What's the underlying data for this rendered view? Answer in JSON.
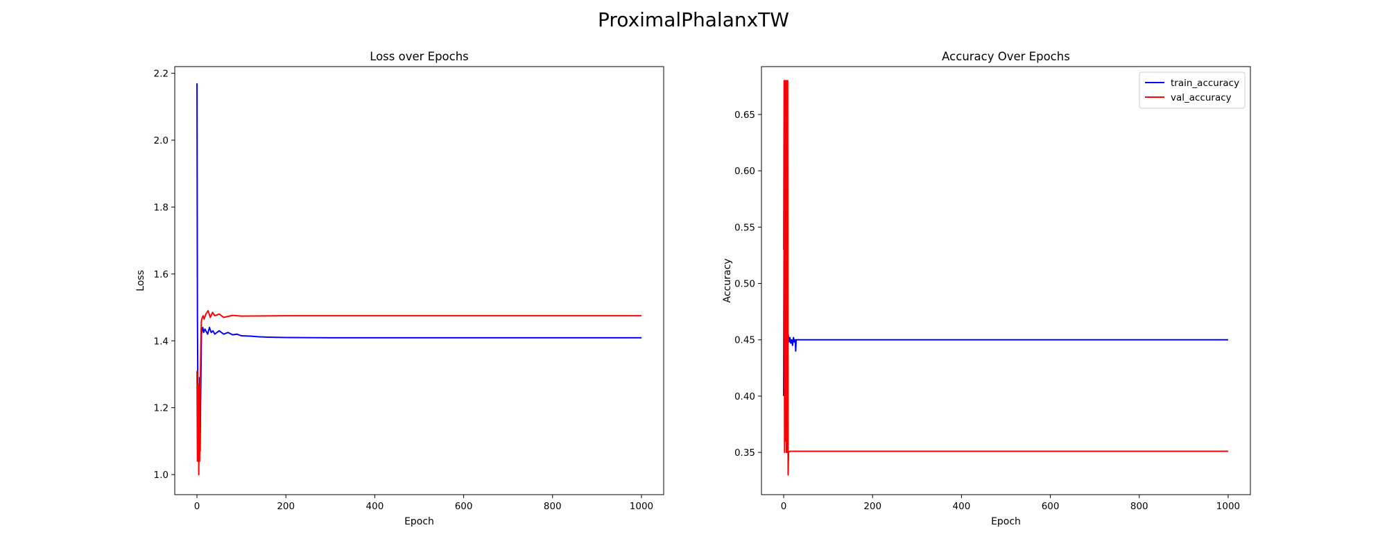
{
  "figure": {
    "title": "ProximalPhalanxTW"
  },
  "chart_data": [
    {
      "type": "line",
      "title": "Loss over Epochs",
      "xlabel": "Epoch",
      "ylabel": "Loss",
      "xlim": [
        -50,
        1050
      ],
      "ylim": [
        0.94,
        2.22
      ],
      "xticks": [
        0,
        200,
        400,
        600,
        800,
        1000
      ],
      "yticks": [
        1.0,
        1.2,
        1.4,
        1.6,
        1.8,
        2.0,
        2.2
      ],
      "ytick_decimals": 1,
      "grid": false,
      "legend": "none",
      "series": [
        {
          "color": "#0000ff",
          "points": [
            [
              0,
              2.17
            ],
            [
              1,
              1.48
            ],
            [
              2,
              1.25
            ],
            [
              3,
              1.1
            ],
            [
              4,
              1.22
            ],
            [
              5,
              1.05
            ],
            [
              6,
              1.29
            ],
            [
              7,
              1.07
            ],
            [
              8,
              1.2
            ],
            [
              9,
              1.3
            ],
            [
              10,
              1.42
            ],
            [
              11,
              1.43
            ],
            [
              13,
              1.44
            ],
            [
              15,
              1.425
            ],
            [
              18,
              1.435
            ],
            [
              20,
              1.43
            ],
            [
              24,
              1.42
            ],
            [
              28,
              1.44
            ],
            [
              32,
              1.425
            ],
            [
              36,
              1.43
            ],
            [
              40,
              1.42
            ],
            [
              50,
              1.43
            ],
            [
              60,
              1.42
            ],
            [
              70,
              1.425
            ],
            [
              80,
              1.418
            ],
            [
              90,
              1.42
            ],
            [
              100,
              1.415
            ],
            [
              120,
              1.414
            ],
            [
              140,
              1.412
            ],
            [
              160,
              1.411
            ],
            [
              200,
              1.41
            ],
            [
              300,
              1.409
            ],
            [
              400,
              1.409
            ],
            [
              600,
              1.409
            ],
            [
              800,
              1.409
            ],
            [
              1000,
              1.409
            ]
          ]
        },
        {
          "color": "#ff0000",
          "points": [
            [
              0,
              1.31
            ],
            [
              1,
              1.04
            ],
            [
              2,
              1.18
            ],
            [
              3,
              1.27
            ],
            [
              4,
              1.0
            ],
            [
              5,
              1.19
            ],
            [
              6,
              1.04
            ],
            [
              7,
              1.22
            ],
            [
              8,
              1.33
            ],
            [
              9,
              1.42
            ],
            [
              10,
              1.46
            ],
            [
              12,
              1.47
            ],
            [
              14,
              1.475
            ],
            [
              16,
              1.465
            ],
            [
              20,
              1.48
            ],
            [
              25,
              1.49
            ],
            [
              30,
              1.47
            ],
            [
              35,
              1.485
            ],
            [
              40,
              1.475
            ],
            [
              50,
              1.48
            ],
            [
              60,
              1.47
            ],
            [
              80,
              1.476
            ],
            [
              100,
              1.474
            ],
            [
              200,
              1.475
            ],
            [
              400,
              1.475
            ],
            [
              600,
              1.475
            ],
            [
              800,
              1.475
            ],
            [
              1000,
              1.475
            ]
          ]
        }
      ]
    },
    {
      "type": "line",
      "title": "Accuracy Over Epochs",
      "xlabel": "Epoch",
      "ylabel": "Accuracy",
      "xlim": [
        -50,
        1050
      ],
      "ylim": [
        0.3125,
        0.6925
      ],
      "xticks": [
        0,
        200,
        400,
        600,
        800,
        1000
      ],
      "yticks": [
        0.35,
        0.4,
        0.45,
        0.5,
        0.55,
        0.6,
        0.65
      ],
      "ytick_decimals": 2,
      "grid": false,
      "legend": "top-right",
      "series": [
        {
          "name": "train_accuracy",
          "color": "#0000ff",
          "points": [
            [
              0,
              0.4
            ],
            [
              1,
              0.55
            ],
            [
              2,
              0.62
            ],
            [
              3,
              0.58
            ],
            [
              4,
              0.6
            ],
            [
              5,
              0.52
            ],
            [
              6,
              0.55
            ],
            [
              7,
              0.5
            ],
            [
              8,
              0.47
            ],
            [
              9,
              0.45
            ],
            [
              10,
              0.455
            ],
            [
              12,
              0.448
            ],
            [
              14,
              0.452
            ],
            [
              16,
              0.447
            ],
            [
              18,
              0.45
            ],
            [
              20,
              0.445
            ],
            [
              22,
              0.452
            ],
            [
              24,
              0.448
            ],
            [
              26,
              0.45
            ],
            [
              27,
              0.44
            ],
            [
              28,
              0.45
            ],
            [
              40,
              0.45
            ],
            [
              1000,
              0.45
            ]
          ]
        },
        {
          "name": "val_accuracy",
          "color": "#ff0000",
          "points": [
            [
              0,
              0.53
            ],
            [
              1,
              0.68
            ],
            [
              2,
              0.35
            ],
            [
              3,
              0.68
            ],
            [
              4,
              0.36
            ],
            [
              5,
              0.68
            ],
            [
              6,
              0.35
            ],
            [
              7,
              0.68
            ],
            [
              8,
              0.35
            ],
            [
              9,
              0.68
            ],
            [
              10,
              0.33
            ],
            [
              11,
              0.35
            ],
            [
              14,
              0.351
            ],
            [
              1000,
              0.351
            ]
          ]
        }
      ]
    }
  ]
}
